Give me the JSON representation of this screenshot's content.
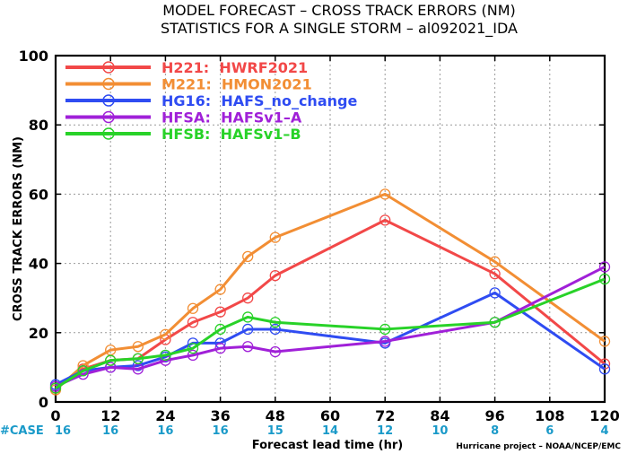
{
  "chart_data": {
    "type": "line",
    "title_line1": "MODEL FORECAST – CROSS TRACK ERRORS (NM)",
    "title_line2": "STATISTICS FOR A SINGLE STORM – al092021_IDA",
    "xlabel": "Forecast lead time (hr)",
    "ylabel": "CROSS TRACK ERRORS (NM)",
    "xlim": [
      0,
      120
    ],
    "ylim": [
      0,
      100
    ],
    "x_ticks": [
      "0",
      "12",
      "24",
      "36",
      "48",
      "60",
      "72",
      "84",
      "96",
      "108",
      "120"
    ],
    "y_ticks": [
      "0",
      "20",
      "40",
      "60",
      "80",
      "100"
    ],
    "grid": true,
    "legend_position": "top-left",
    "case_label": "#CASE",
    "case_counts": [
      "16",
      "16",
      "16",
      "16",
      "15",
      "14",
      "12",
      "10",
      "8",
      "6",
      "4"
    ],
    "credit": "Hurricane project – NOAA/NCEP/EMC",
    "series": [
      {
        "name": "H221:  HWRF2021",
        "color": "#f24848",
        "x": [
          0,
          6,
          12,
          18,
          24,
          30,
          36,
          42,
          48,
          72,
          96,
          120
        ],
        "values": [
          4,
          9.5,
          12,
          12.5,
          18,
          23,
          26,
          30,
          36.5,
          52.5,
          37,
          11
        ]
      },
      {
        "name": "M221:  HMON2021",
        "color": "#f28e34",
        "x": [
          0,
          6,
          12,
          18,
          24,
          30,
          36,
          42,
          48,
          72,
          96,
          120
        ],
        "values": [
          3.5,
          10.5,
          15,
          16,
          19.5,
          27,
          32.5,
          42,
          47.5,
          60,
          40.5,
          17.5
        ]
      },
      {
        "name": "HG16:  HAFS_no_change",
        "color": "#2f4cf2",
        "x": [
          0,
          6,
          12,
          18,
          24,
          30,
          36,
          42,
          48,
          72,
          96,
          120
        ],
        "values": [
          5,
          9,
          10,
          10.5,
          13,
          17,
          17,
          21,
          21,
          17,
          31.5,
          9.5
        ]
      },
      {
        "name": "HFSA:  HAFSv1–A",
        "color": "#a020d8",
        "x": [
          0,
          6,
          12,
          18,
          24,
          30,
          36,
          42,
          48,
          72,
          96,
          120
        ],
        "values": [
          4.5,
          8,
          10,
          9.5,
          12,
          13.5,
          15.5,
          16,
          14.5,
          17.5,
          23,
          39
        ]
      },
      {
        "name": "HFSB:  HAFSv1–B",
        "color": "#28d228",
        "x": [
          0,
          6,
          12,
          18,
          24,
          30,
          36,
          42,
          48,
          72,
          96,
          120
        ],
        "values": [
          4,
          9,
          12,
          12.5,
          13.5,
          15.5,
          21,
          24.5,
          23,
          21,
          23,
          35.5
        ]
      }
    ]
  }
}
